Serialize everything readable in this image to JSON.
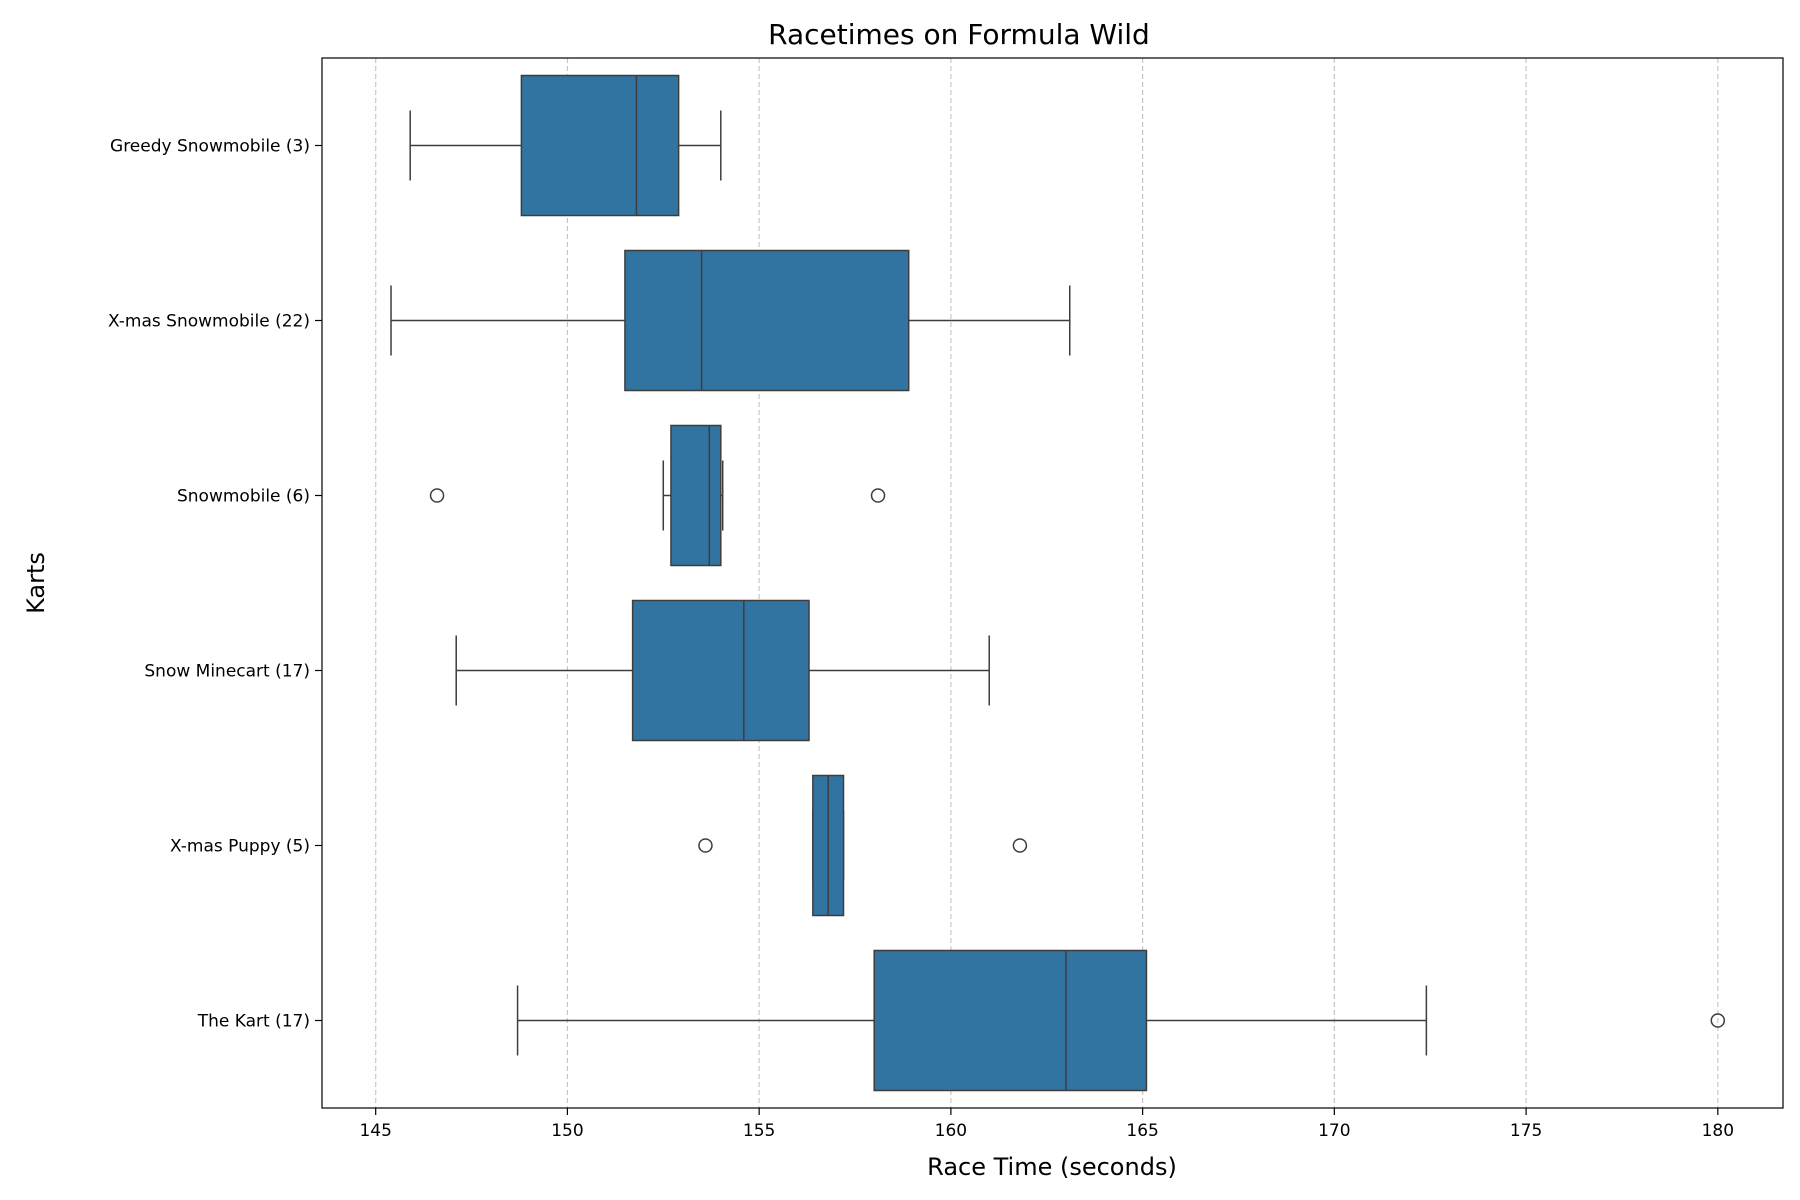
{
  "chart_data": {
    "type": "box",
    "orientation": "horizontal",
    "title": "Racetimes on Formula Wild",
    "xlabel": "Race Time (seconds)",
    "ylabel": "Karts",
    "xlim": [
      143.6,
      181.7
    ],
    "xticks": [
      145,
      150,
      155,
      160,
      165,
      170,
      175,
      180
    ],
    "grid": "x-dashed",
    "colors": {
      "box": "#3274a1",
      "line": "#3d3d3d",
      "grid": "#c8c8c8"
    },
    "categories": [
      "Greedy Snowmobile (3)",
      "X-mas Snowmobile (22)",
      "Snowmobile (6)",
      "Snow Minecart (17)",
      "X-mas Puppy (5)",
      "The Kart (17)"
    ],
    "series": [
      {
        "whisker_low": 145.9,
        "q1": 148.8,
        "median": 151.8,
        "q3": 152.9,
        "whisker_high": 154.0,
        "outliers": []
      },
      {
        "whisker_low": 145.4,
        "q1": 151.5,
        "median": 153.5,
        "q3": 158.9,
        "whisker_high": 163.1,
        "outliers": []
      },
      {
        "whisker_low": 152.5,
        "q1": 152.7,
        "median": 153.7,
        "q3": 154.0,
        "whisker_high": 154.05,
        "outliers": [
          146.6,
          158.1
        ]
      },
      {
        "whisker_low": 147.1,
        "q1": 151.7,
        "median": 154.6,
        "q3": 156.3,
        "whisker_high": 161.0,
        "outliers": []
      },
      {
        "whisker_low": 156.4,
        "q1": 156.4,
        "median": 156.8,
        "q3": 157.2,
        "whisker_high": 157.2,
        "outliers": [
          153.6,
          161.8
        ]
      },
      {
        "whisker_low": 148.7,
        "q1": 158.0,
        "median": 163.0,
        "q3": 165.1,
        "whisker_high": 172.4,
        "outliers": [
          180.0
        ]
      }
    ]
  }
}
